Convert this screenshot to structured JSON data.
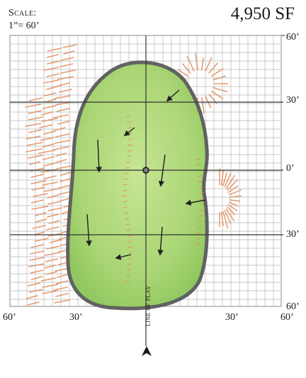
{
  "scale": {
    "title": "Scale:",
    "value": "1”= 60’"
  },
  "area": "4,950 SF",
  "axes": {
    "right": [
      "60’",
      "30’",
      "0’",
      "30’",
      "60’"
    ],
    "bottom": [
      "60’",
      "30’",
      "30’",
      "60’"
    ]
  },
  "line_of_play": "LINE OF PLAY",
  "colors": {
    "green": "#9ed064",
    "collar": "#565656",
    "bunker_mark": "#e08a58",
    "grid": "#b8b8b8",
    "axis": "#333333"
  },
  "slope_arrows": [
    "slope-arrow",
    "slope-arrow",
    "slope-arrow",
    "slope-arrow",
    "slope-arrow",
    "slope-arrow",
    "slope-arrow",
    "slope-arrow"
  ],
  "pin": "pin-marker"
}
